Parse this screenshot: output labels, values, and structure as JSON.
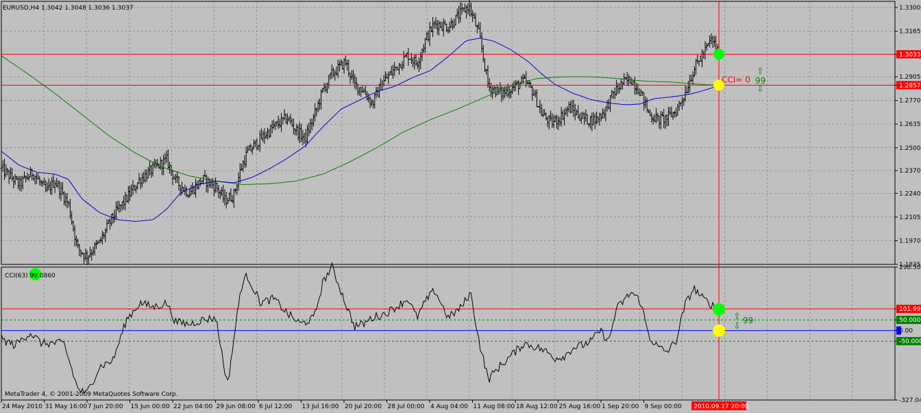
{
  "window": {
    "header": "EURUSD,H4  1.3042 1.3048 1.3036 1.3037",
    "watermark": "MetaTrader 4, © 2001-2009 MetaQuotes Software Corp."
  },
  "colors": {
    "background": "#c0c0c0",
    "bars": "#000000",
    "ma_fast": "#0000cc",
    "ma_slow": "#008000",
    "level_line": "#ff0000",
    "cursor_line": "#ff0000",
    "marker_green": "#00ff00",
    "marker_yellow": "#ffff00",
    "arrow_text": "#008000",
    "cci_zero_line": "#0000ff",
    "cci_dashed_levels": "#008000"
  },
  "chart_data": [
    {
      "type": "line",
      "name": "price_panel",
      "description_visible": "EURUSD H4 bars",
      "ylim": [
        1.1835,
        1.3335
      ],
      "y_tick_labels": [
        "1.3300",
        "1.3165",
        "1.3033",
        "1.2905",
        "1.2857",
        "1.2770",
        "1.2635",
        "1.2500",
        "1.2370",
        "1.2240",
        "1.2105",
        "1.1970",
        "1.1835"
      ],
      "x_tick_labels": [
        "24 May 2010",
        "31 May 16:00",
        "7 Jun 20:00",
        "15 Jun 00:00",
        "22 Jun 04:00",
        "29 Jun 08:00",
        "6 Jul 12:00",
        "13 Jul 16:00",
        "20 Jul 20:00",
        "28 Jul 00:00",
        "4 Aug 04:00",
        "11 Aug 08:00",
        "18 Aug 12:00",
        "25 Aug 16:00",
        "1 Sep 20:00",
        "9 Sep 00:00"
      ],
      "x_range": [
        0,
        100
      ],
      "cursor_x": 80.3,
      "cursor_label": "2010.09.17 20:00",
      "price_keypoints": [
        [
          0,
          1.238
        ],
        [
          2,
          1.229
        ],
        [
          3.5,
          1.236
        ],
        [
          5,
          1.225
        ],
        [
          6,
          1.231
        ],
        [
          7.5,
          1.218
        ],
        [
          8.5,
          1.193
        ],
        [
          9.5,
          1.188
        ],
        [
          11,
          1.196
        ],
        [
          12.5,
          1.211
        ],
        [
          14,
          1.221
        ],
        [
          15.5,
          1.232
        ],
        [
          17,
          1.238
        ],
        [
          18.5,
          1.243
        ],
        [
          19.5,
          1.231
        ],
        [
          21,
          1.224
        ],
        [
          22.5,
          1.232
        ],
        [
          24,
          1.228
        ],
        [
          25,
          1.22
        ],
        [
          26,
          1.223
        ],
        [
          26.8,
          1.238
        ],
        [
          27.5,
          1.247
        ],
        [
          29,
          1.255
        ],
        [
          30.5,
          1.262
        ],
        [
          32,
          1.267
        ],
        [
          33,
          1.26
        ],
        [
          34,
          1.255
        ],
        [
          35,
          1.268
        ],
        [
          36,
          1.283
        ],
        [
          37,
          1.292
        ],
        [
          38.5,
          1.299
        ],
        [
          39.5,
          1.286
        ],
        [
          40.5,
          1.283
        ],
        [
          41.5,
          1.275
        ],
        [
          42.5,
          1.286
        ],
        [
          44,
          1.295
        ],
        [
          45.5,
          1.303
        ],
        [
          46.5,
          1.298
        ],
        [
          47.5,
          1.312
        ],
        [
          48.5,
          1.321
        ],
        [
          50,
          1.319
        ],
        [
          51.5,
          1.327
        ],
        [
          52.3,
          1.331
        ],
        [
          53.5,
          1.314
        ],
        [
          54.5,
          1.285
        ],
        [
          56,
          1.281
        ],
        [
          57.5,
          1.285
        ],
        [
          58.5,
          1.288
        ],
        [
          59.5,
          1.282
        ],
        [
          60.5,
          1.269
        ],
        [
          61.5,
          1.264
        ],
        [
          62.5,
          1.267
        ],
        [
          63.5,
          1.273
        ],
        [
          64.5,
          1.269
        ],
        [
          65.5,
          1.266
        ],
        [
          66.5,
          1.266
        ],
        [
          67.5,
          1.271
        ],
        [
          68.5,
          1.281
        ],
        [
          69.5,
          1.287
        ],
        [
          70.5,
          1.289
        ],
        [
          71.5,
          1.282
        ],
        [
          72.5,
          1.269
        ],
        [
          73.5,
          1.266
        ],
        [
          74.5,
          1.267
        ],
        [
          75.5,
          1.271
        ],
        [
          76.5,
          1.281
        ],
        [
          77.5,
          1.295
        ],
        [
          78.5,
          1.303
        ],
        [
          79.5,
          1.312
        ],
        [
          80.3,
          1.3037
        ]
      ],
      "ma_fast_keypoints": [
        [
          0,
          1.248
        ],
        [
          2,
          1.24
        ],
        [
          4,
          1.236
        ],
        [
          6,
          1.235
        ],
        [
          7.5,
          1.232
        ],
        [
          9,
          1.221
        ],
        [
          11,
          1.213
        ],
        [
          13,
          1.209
        ],
        [
          15,
          1.208
        ],
        [
          17,
          1.209
        ],
        [
          18.5,
          1.215
        ],
        [
          20,
          1.224
        ],
        [
          22,
          1.229
        ],
        [
          24,
          1.231
        ],
        [
          26,
          1.23
        ],
        [
          28,
          1.233
        ],
        [
          30,
          1.238
        ],
        [
          32,
          1.244
        ],
        [
          34,
          1.251
        ],
        [
          36,
          1.262
        ],
        [
          38,
          1.272
        ],
        [
          40,
          1.277
        ],
        [
          42,
          1.282
        ],
        [
          44,
          1.285
        ],
        [
          46,
          1.29
        ],
        [
          48,
          1.294
        ],
        [
          50,
          1.302
        ],
        [
          52,
          1.311
        ],
        [
          53.5,
          1.3125
        ],
        [
          55,
          1.311
        ],
        [
          57,
          1.306
        ],
        [
          59,
          1.299
        ],
        [
          60.5,
          1.292
        ],
        [
          62,
          1.286
        ],
        [
          64,
          1.281
        ],
        [
          66,
          1.2775
        ],
        [
          68,
          1.2755
        ],
        [
          70,
          1.2745
        ],
        [
          71.5,
          1.275
        ],
        [
          73,
          1.278
        ],
        [
          75,
          1.279
        ],
        [
          77,
          1.2805
        ],
        [
          78.5,
          1.2825
        ],
        [
          80.3,
          1.2855
        ]
      ],
      "ma_slow_keypoints": [
        [
          0,
          1.3025
        ],
        [
          3,
          1.292
        ],
        [
          6,
          1.281
        ],
        [
          9,
          1.269
        ],
        [
          12,
          1.257
        ],
        [
          15,
          1.247
        ],
        [
          18,
          1.239
        ],
        [
          21,
          1.234
        ],
        [
          24,
          1.231
        ],
        [
          27,
          1.229
        ],
        [
          30,
          1.2295
        ],
        [
          33,
          1.231
        ],
        [
          36,
          1.235
        ],
        [
          39,
          1.242
        ],
        [
          42,
          1.25
        ],
        [
          45,
          1.259
        ],
        [
          48,
          1.266
        ],
        [
          51,
          1.272
        ],
        [
          53.5,
          1.2775
        ],
        [
          56,
          1.283
        ],
        [
          58,
          1.287
        ],
        [
          60,
          1.2895
        ],
        [
          63,
          1.2905
        ],
        [
          66,
          1.2905
        ],
        [
          69,
          1.2895
        ],
        [
          72,
          1.288
        ],
        [
          75,
          1.2875
        ],
        [
          77.5,
          1.2865
        ],
        [
          80.3,
          1.2855
        ]
      ],
      "horizontal_levels": [
        {
          "value": 1.3033,
          "label": "1.3033"
        },
        {
          "value": 1.2857,
          "label": "1.2857"
        }
      ],
      "markers": [
        {
          "x": 80.3,
          "y": 1.3033,
          "color": "green"
        },
        {
          "x": 80.3,
          "y": 1.2857,
          "color": "yellow"
        }
      ],
      "annotations": {
        "cci_label": "CCI= 0",
        "arrow_value": "99",
        "arrow_up": "⇧",
        "arrow_down": "⇩"
      }
    },
    {
      "type": "line",
      "name": "cci_panel",
      "label": "CCI(63) 99.0860",
      "ylim": [
        -327.04,
        298.503
      ],
      "y_tick_labels": [
        "298.503",
        "101.999",
        "50.0000",
        "0.00",
        "-50.0000",
        "-327.04"
      ],
      "levels": [
        {
          "value": 101.999,
          "style": "solid",
          "label": "101.999"
        },
        {
          "value": 50,
          "style": "dashed",
          "label": "50.0000"
        },
        {
          "value": 0,
          "style": "solid",
          "label": "0.00"
        },
        {
          "value": -50,
          "style": "dashed",
          "label": "-50.0000"
        }
      ],
      "cci_keypoints": [
        [
          0,
          -40
        ],
        [
          1.5,
          -70
        ],
        [
          3.2,
          -10
        ],
        [
          4.5,
          -60
        ],
        [
          5.8,
          -60
        ],
        [
          7,
          -60
        ],
        [
          8.5,
          -270
        ],
        [
          9.5,
          -300
        ],
        [
          11,
          -170
        ],
        [
          12.5,
          -140
        ],
        [
          14,
          50
        ],
        [
          15.5,
          130
        ],
        [
          17,
          110
        ],
        [
          18.5,
          130
        ],
        [
          19.5,
          40
        ],
        [
          21,
          30
        ],
        [
          22.5,
          50
        ],
        [
          24,
          60
        ],
        [
          25.3,
          -260
        ],
        [
          26.8,
          200
        ],
        [
          27.5,
          260
        ],
        [
          29,
          130
        ],
        [
          30.5,
          150
        ],
        [
          32,
          80
        ],
        [
          33.5,
          30
        ],
        [
          35,
          60
        ],
        [
          36,
          230
        ],
        [
          37,
          300
        ],
        [
          38.5,
          130
        ],
        [
          39.5,
          20
        ],
        [
          40.5,
          30
        ],
        [
          41.5,
          60
        ],
        [
          43,
          80
        ],
        [
          44.5,
          120
        ],
        [
          45.5,
          150
        ],
        [
          46.5,
          60
        ],
        [
          47.5,
          140
        ],
        [
          48.5,
          190
        ],
        [
          50,
          60
        ],
        [
          51.5,
          110
        ],
        [
          52.5,
          180
        ],
        [
          53.5,
          -60
        ],
        [
          54.5,
          -230
        ],
        [
          55.5,
          -180
        ],
        [
          57,
          -120
        ],
        [
          58.5,
          -60
        ],
        [
          60,
          -80
        ],
        [
          61,
          -100
        ],
        [
          62,
          -130
        ],
        [
          63,
          -120
        ],
        [
          64,
          -80
        ],
        [
          65,
          -70
        ],
        [
          66,
          -50
        ],
        [
          67,
          0
        ],
        [
          68,
          -50
        ],
        [
          68.8,
          100
        ],
        [
          70.5,
          180
        ],
        [
          71.5,
          140
        ],
        [
          72.5,
          -30
        ],
        [
          73.5,
          -80
        ],
        [
          74.5,
          -100
        ],
        [
          75.5,
          -50
        ],
        [
          76.5,
          120
        ],
        [
          77.5,
          200
        ],
        [
          78.5,
          150
        ],
        [
          80.3,
          99
        ]
      ],
      "markers": [
        {
          "x": 80.3,
          "y": 99,
          "color": "green"
        },
        {
          "x": 80.3,
          "y": 0,
          "color": "yellow"
        },
        {
          "x": 3.8,
          "y": 265,
          "color": "green"
        }
      ],
      "annotations": {
        "arrow_value": "99",
        "arrow_up": "⇧",
        "arrow_down": "⇩"
      }
    }
  ]
}
